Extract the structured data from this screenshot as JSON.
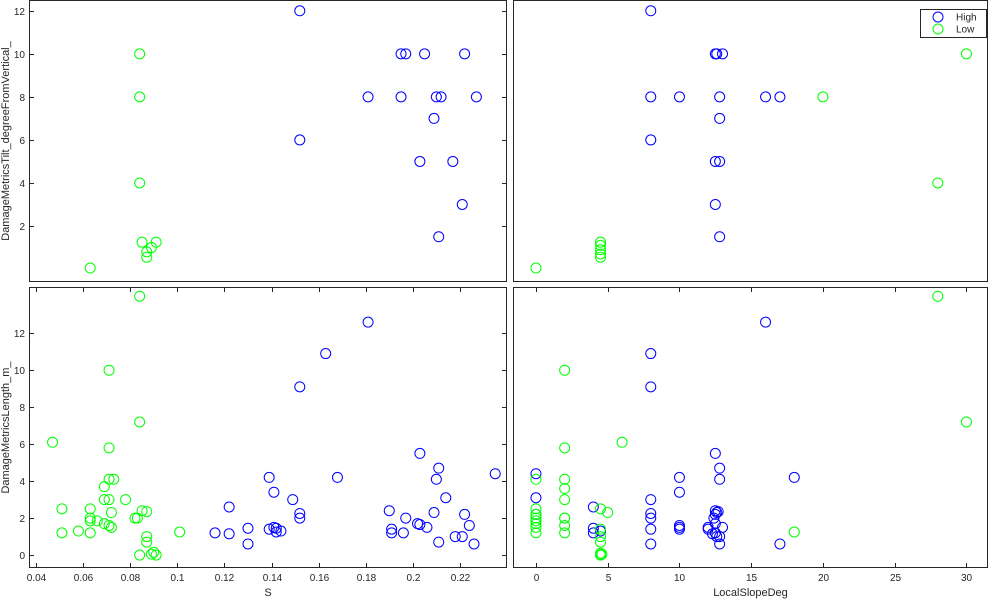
{
  "chart_data": [
    {
      "type": "scatter",
      "panel": "top-left",
      "xlabel": "",
      "ylabel": "DamageMetricsTilt_degreeFromVertical_",
      "xlim": [
        0.037,
        0.24
      ],
      "ylim": [
        -0.6,
        12.5
      ],
      "xticks": [],
      "yticks": [
        2,
        4,
        6,
        8,
        10,
        12
      ],
      "series": [
        {
          "name": "High",
          "color": "#0000ff",
          "points": [
            [
              0.152,
              12
            ],
            [
              0.195,
              10
            ],
            [
              0.197,
              10
            ],
            [
              0.205,
              10
            ],
            [
              0.222,
              10
            ],
            [
              0.181,
              8
            ],
            [
              0.195,
              8
            ],
            [
              0.21,
              8
            ],
            [
              0.212,
              8
            ],
            [
              0.227,
              8
            ],
            [
              0.209,
              7
            ],
            [
              0.152,
              6
            ],
            [
              0.203,
              5
            ],
            [
              0.217,
              5
            ],
            [
              0.221,
              3
            ],
            [
              0.211,
              1.5
            ]
          ]
        },
        {
          "name": "Low",
          "color": "#00ff00",
          "points": [
            [
              0.084,
              10
            ],
            [
              0.084,
              8
            ],
            [
              0.084,
              4
            ],
            [
              0.085,
              1.25
            ],
            [
              0.091,
              1.25
            ],
            [
              0.089,
              1.0
            ],
            [
              0.087,
              0.8
            ],
            [
              0.087,
              0.55
            ],
            [
              0.063,
              0.05
            ]
          ]
        }
      ]
    },
    {
      "type": "scatter",
      "panel": "top-right",
      "xlabel": "",
      "ylabel": "",
      "xlim": [
        -1.6,
        31.5
      ],
      "ylim": [
        -0.6,
        12.5
      ],
      "xticks": [],
      "yticks": [],
      "legend": {
        "placement": "top-right",
        "entries": [
          "High",
          "Low"
        ]
      },
      "series": [
        {
          "name": "High",
          "color": "#0000ff",
          "points": [
            [
              8,
              12
            ],
            [
              12.5,
              10
            ],
            [
              12.6,
              10
            ],
            [
              13,
              10
            ],
            [
              8,
              8
            ],
            [
              10,
              8
            ],
            [
              12.8,
              8
            ],
            [
              16,
              8
            ],
            [
              17,
              8
            ],
            [
              12.8,
              7
            ],
            [
              8,
              6
            ],
            [
              12.5,
              5
            ],
            [
              12.8,
              5
            ],
            [
              12.5,
              3
            ],
            [
              12.8,
              1.5
            ]
          ]
        },
        {
          "name": "Low",
          "color": "#00ff00",
          "points": [
            [
              30,
              10
            ],
            [
              20,
              8
            ],
            [
              28,
              4
            ],
            [
              4.5,
              1.25
            ],
            [
              4.5,
              1.1
            ],
            [
              4.5,
              0.9
            ],
            [
              4.5,
              0.7
            ],
            [
              4.5,
              0.55
            ],
            [
              0,
              0.05
            ]
          ]
        }
      ]
    },
    {
      "type": "scatter",
      "panel": "bottom-left",
      "xlabel": "S",
      "ylabel": "DamageMetricsLength_m_",
      "xlim": [
        0.037,
        0.24
      ],
      "ylim": [
        -0.7,
        14.5
      ],
      "xticks": [
        0.04,
        0.06,
        0.08,
        0.1,
        0.12,
        0.14,
        0.16,
        0.18,
        0.2,
        0.22
      ],
      "xtick_labels": [
        "0.04",
        "0.06",
        "0.08",
        "0.1",
        "0.12",
        "0.14",
        "0.16",
        "0.18",
        "0.2",
        "0.22"
      ],
      "yticks": [
        0,
        2,
        4,
        6,
        8,
        10,
        12
      ],
      "series": [
        {
          "name": "High",
          "color": "#0000ff",
          "points": [
            [
              0.181,
              12.6
            ],
            [
              0.163,
              10.9
            ],
            [
              0.152,
              9.1
            ],
            [
              0.203,
              5.5
            ],
            [
              0.211,
              4.7
            ],
            [
              0.235,
              4.4
            ],
            [
              0.139,
              4.2
            ],
            [
              0.168,
              4.2
            ],
            [
              0.21,
              4.1
            ],
            [
              0.141,
              3.4
            ],
            [
              0.214,
              3.1
            ],
            [
              0.149,
              3.0
            ],
            [
              0.122,
              2.6
            ],
            [
              0.19,
              2.4
            ],
            [
              0.209,
              2.3
            ],
            [
              0.222,
              2.2
            ],
            [
              0.152,
              2.25
            ],
            [
              0.152,
              2.0
            ],
            [
              0.197,
              2.0
            ],
            [
              0.202,
              1.7
            ],
            [
              0.203,
              1.65
            ],
            [
              0.206,
              1.5
            ],
            [
              0.224,
              1.6
            ],
            [
              0.13,
              1.45
            ],
            [
              0.139,
              1.4
            ],
            [
              0.142,
              1.45
            ],
            [
              0.141,
              1.5
            ],
            [
              0.144,
              1.3
            ],
            [
              0.142,
              1.25
            ],
            [
              0.191,
              1.4
            ],
            [
              0.116,
              1.2
            ],
            [
              0.122,
              1.15
            ],
            [
              0.191,
              1.2
            ],
            [
              0.196,
              1.2
            ],
            [
              0.218,
              1.0
            ],
            [
              0.221,
              1.0
            ],
            [
              0.211,
              0.7
            ],
            [
              0.226,
              0.6
            ],
            [
              0.13,
              0.6
            ]
          ]
        },
        {
          "name": "Low",
          "color": "#00ff00",
          "points": [
            [
              0.084,
              14
            ],
            [
              0.071,
              10
            ],
            [
              0.084,
              7.2
            ],
            [
              0.047,
              6.1
            ],
            [
              0.071,
              5.8
            ],
            [
              0.071,
              4.1
            ],
            [
              0.073,
              4.1
            ],
            [
              0.069,
              3.7
            ],
            [
              0.069,
              3.0
            ],
            [
              0.071,
              3.0
            ],
            [
              0.078,
              3.0
            ],
            [
              0.051,
              2.5
            ],
            [
              0.063,
              2.5
            ],
            [
              0.072,
              2.3
            ],
            [
              0.085,
              2.4
            ],
            [
              0.087,
              2.35
            ],
            [
              0.063,
              2.0
            ],
            [
              0.063,
              1.85
            ],
            [
              0.066,
              1.85
            ],
            [
              0.082,
              2.0
            ],
            [
              0.083,
              2.0
            ],
            [
              0.069,
              1.7
            ],
            [
              0.071,
              1.6
            ],
            [
              0.072,
              1.5
            ],
            [
              0.051,
              1.2
            ],
            [
              0.058,
              1.3
            ],
            [
              0.063,
              1.2
            ],
            [
              0.101,
              1.25
            ],
            [
              0.087,
              1.0
            ],
            [
              0.087,
              0.7
            ],
            [
              0.084,
              0.0
            ],
            [
              0.089,
              0.05
            ],
            [
              0.09,
              0.15
            ],
            [
              0.091,
              0.0
            ]
          ]
        }
      ]
    },
    {
      "type": "scatter",
      "panel": "bottom-right",
      "xlabel": "LocalSlopeDeg",
      "ylabel": "",
      "xlim": [
        -1.6,
        31.5
      ],
      "ylim": [
        -0.7,
        14.5
      ],
      "xticks": [
        0,
        5,
        10,
        15,
        20,
        25,
        30
      ],
      "xtick_labels": [
        "0",
        "5",
        "10",
        "15",
        "20",
        "25",
        "30"
      ],
      "yticks": [],
      "series": [
        {
          "name": "High",
          "color": "#0000ff",
          "points": [
            [
              16,
              12.6
            ],
            [
              8,
              10.9
            ],
            [
              8,
              9.1
            ],
            [
              12.5,
              5.5
            ],
            [
              12.8,
              4.7
            ],
            [
              0,
              4.4
            ],
            [
              10,
              4.2
            ],
            [
              18,
              4.2
            ],
            [
              12.8,
              4.1
            ],
            [
              10,
              3.4
            ],
            [
              0,
              3.1
            ],
            [
              8,
              3.0
            ],
            [
              4,
              2.6
            ],
            [
              12.5,
              2.4
            ],
            [
              12.6,
              2.3
            ],
            [
              12.7,
              2.35
            ],
            [
              8,
              2.25
            ],
            [
              8,
              2.0
            ],
            [
              0,
              2.2
            ],
            [
              12.5,
              2.2
            ],
            [
              12.4,
              2.0
            ],
            [
              12.5,
              1.7
            ],
            [
              13,
              1.5
            ],
            [
              10,
              1.6
            ],
            [
              4,
              1.45
            ],
            [
              8,
              1.4
            ],
            [
              10,
              1.5
            ],
            [
              10,
              1.4
            ],
            [
              12,
              1.4
            ],
            [
              12,
              1.5
            ],
            [
              4,
              1.2
            ],
            [
              4.5,
              1.3
            ],
            [
              12.3,
              1.15
            ],
            [
              12.5,
              1.2
            ],
            [
              12.6,
              1.0
            ],
            [
              12.8,
              1.0
            ],
            [
              8,
              0.6
            ],
            [
              12.8,
              0.6
            ],
            [
              17,
              0.6
            ]
          ]
        },
        {
          "name": "Low",
          "color": "#00ff00",
          "points": [
            [
              28,
              14
            ],
            [
              2,
              10
            ],
            [
              30,
              7.2
            ],
            [
              6,
              6.1
            ],
            [
              2,
              5.8
            ],
            [
              0,
              4.1
            ],
            [
              2,
              4.1
            ],
            [
              2,
              3.6
            ],
            [
              0,
              2.5
            ],
            [
              2,
              3.0
            ],
            [
              4.5,
              2.5
            ],
            [
              5,
              2.3
            ],
            [
              0,
              2.2
            ],
            [
              0,
              2.0
            ],
            [
              0,
              1.85
            ],
            [
              0,
              1.7
            ],
            [
              0,
              1.5
            ],
            [
              2,
              2.0
            ],
            [
              2,
              2.0
            ],
            [
              2,
              1.6
            ],
            [
              2,
              1.2
            ],
            [
              4.5,
              1.4
            ],
            [
              18,
              1.25
            ],
            [
              0,
              1.2
            ],
            [
              4.5,
              1.0
            ],
            [
              4.5,
              0.7
            ],
            [
              4.5,
              0.1
            ],
            [
              4.5,
              0.0
            ],
            [
              4.6,
              0.05
            ],
            [
              4.5,
              0.0
            ]
          ]
        }
      ]
    }
  ]
}
